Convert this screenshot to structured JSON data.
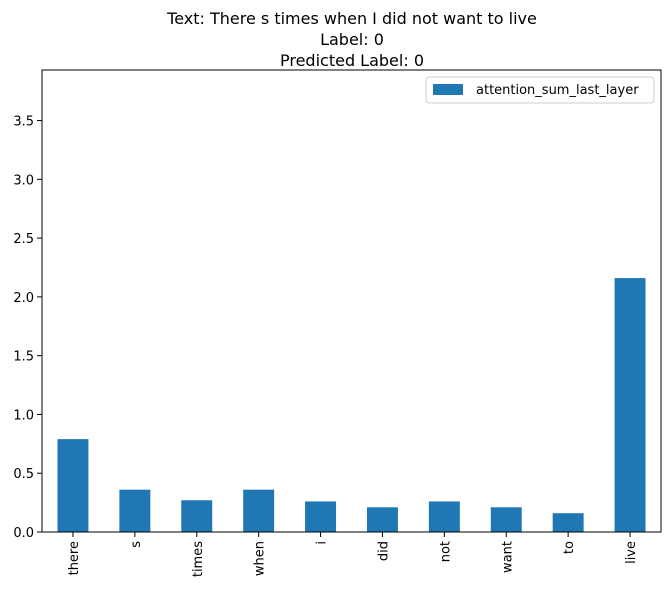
{
  "chart_data": {
    "type": "bar",
    "title_lines": [
      "Text: There s times when I did not want to live",
      "Label: 0",
      "Predicted Label: 0"
    ],
    "categories": [
      "there",
      "s",
      "times",
      "when",
      "i",
      "did",
      "not",
      "want",
      "to",
      "live"
    ],
    "series": [
      {
        "name": "attention_sum_last_layer",
        "values": [
          0.79,
          0.36,
          0.27,
          0.36,
          0.26,
          0.21,
          0.26,
          0.21,
          0.16,
          2.16
        ]
      }
    ],
    "ylim": [
      0,
      3.93
    ],
    "yticks": [
      0.0,
      0.5,
      1.0,
      1.5,
      2.0,
      2.5,
      3.0,
      3.5
    ],
    "ytick_labels": [
      "0.0",
      "0.5",
      "1.0",
      "1.5",
      "2.0",
      "2.5",
      "3.0",
      "3.5"
    ],
    "xlabel": "",
    "ylabel": "",
    "grid": false,
    "legend_position": "top-right",
    "bar_color": "#1f77b4"
  }
}
